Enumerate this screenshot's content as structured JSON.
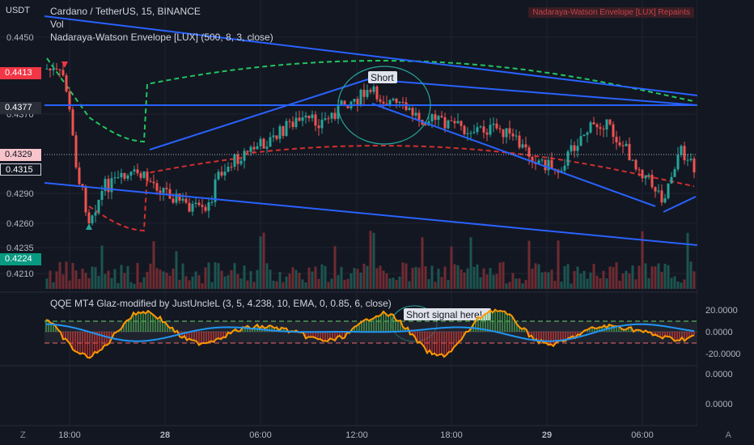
{
  "header": {
    "title": "Cardano / TetherUS, 15, BINANCE",
    "vol_label": "Vol",
    "nw_label": "Nadaraya-Watson Envelope [LUX] (500, 8, 3, close)",
    "repaint_badge": "Nadaraya-Watson Envelope [LUX] Repaints"
  },
  "qqe": {
    "title": "QQE MT4 Glaz-modified by JustUncleL (3, 5, 4.238, 10, EMA, 0, 0.85, 6, close)",
    "axis_ticks": [
      "20.0000",
      "0.0000",
      "-20.0000"
    ],
    "lower_ticks": [
      "0.0000",
      "0.0000"
    ]
  },
  "price_axis": {
    "currency": "USDT",
    "ticks": [
      "0.4450",
      "0.4370",
      "0.4290",
      "0.4260",
      "0.4235",
      "0.4210"
    ],
    "tags": [
      {
        "label": "0.4413",
        "bg": "#f23645",
        "fg": "#ffffff"
      },
      {
        "label": "0.4377",
        "bg": "#2a2e39",
        "fg": "#ffffff"
      },
      {
        "label": "0.4329",
        "bg": "#f7c4cb",
        "fg": "#131722"
      },
      {
        "label": "0.4315",
        "bg": "#131722",
        "fg": "#ffffff"
      },
      {
        "label": "0.4224",
        "bg": "#089981",
        "fg": "#ffffff"
      }
    ]
  },
  "time_axis": {
    "ticks": [
      "18:00",
      "28",
      "06:00",
      "12:00",
      "18:00",
      "29",
      "06:00"
    ]
  },
  "annotations": {
    "short_label": "Short",
    "short_signal_label": "Short signal here!"
  },
  "corners": {
    "left": "Z",
    "right": "A"
  },
  "colors": {
    "background": "#131722",
    "bull": "#26a69a",
    "bear": "#ef5350",
    "trendline": "#2962ff",
    "envelope_upper": "#22c55e",
    "envelope_lower": "#d32f2f",
    "qqe_line": "#ff9800",
    "qqe_signal": "#2196f3"
  }
}
